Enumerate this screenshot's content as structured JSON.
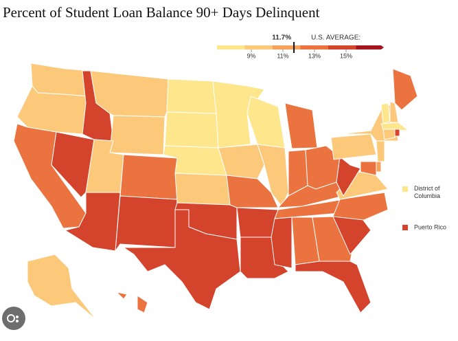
{
  "title": "Percent of Student Loan Balance 90+ Days Delinquent",
  "legend": {
    "average": {
      "value": 11.7,
      "label": "11.7%"
    },
    "average_label": "U.S. AVERAGE:",
    "colors": [
      "#fde68c",
      "#fcc97b",
      "#f6a15c",
      "#ea733f",
      "#d4432b",
      "#a5161f"
    ],
    "ticks": [
      {
        "value": 9,
        "label": "9%"
      },
      {
        "value": 11,
        "label": "11%"
      },
      {
        "value": 13,
        "label": "13%"
      },
      {
        "value": 15,
        "label": "15%"
      }
    ]
  },
  "states": [
    10,
    10,
    13.5,
    15.5,
    15.5,
    10,
    10,
    10,
    15.5,
    13.5,
    15.5,
    8,
    8,
    8,
    10,
    15.5,
    15.5,
    8,
    10,
    13.5,
    17.5,
    17.5,
    8,
    10,
    17.5,
    13.5,
    13.5,
    13.5,
    13.5,
    13.5,
    13.5,
    13.5,
    15.5,
    15.5,
    13.5,
    10,
    17.5,
    10,
    10,
    13.5,
    8,
    10,
    8,
    10,
    15.5,
    10,
    12,
    13.5,
    10,
    13.5,
    13.5
  ],
  "extras": [
    {
      "label": "District of Columbia",
      "value": 8
    },
    {
      "label": "Puerto Rico",
      "value": 17.5
    }
  ]
}
